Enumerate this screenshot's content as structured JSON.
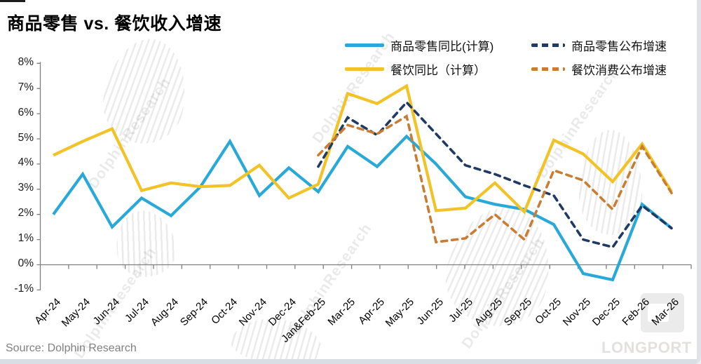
{
  "title": "商品零售 vs. 餐饮收入增速",
  "source": "Source: Dolphin Research",
  "watermark": {
    "text": "DolphinResearch",
    "logo_text": "LONGPORT"
  },
  "legend": [
    {
      "label": "商品零售同比(计算)",
      "color": "#29A9D8",
      "style": "solid"
    },
    {
      "label": "餐饮同比（计算）",
      "color": "#F2C327",
      "style": "solid"
    },
    {
      "label": "商品零售公布增速",
      "color": "#1F3A63",
      "style": "dashed"
    },
    {
      "label": "餐饮消费公布增速",
      "color": "#C97D33",
      "style": "dashed"
    }
  ],
  "chart_data": {
    "type": "line",
    "title": "商品零售 vs. 餐饮收入增速",
    "xlabel": "",
    "ylabel": "",
    "ylim": [
      -1,
      8
    ],
    "grid": false,
    "legend_position": "top",
    "y_ticks": [
      "8%",
      "7%",
      "6%",
      "5%",
      "4%",
      "3%",
      "2%",
      "1%",
      "0%",
      "-1%"
    ],
    "categories": [
      "Apr-24",
      "May-24",
      "Jun-24",
      "Jul-24",
      "Aug-24",
      "Sep-24",
      "Oct-24",
      "Nov-24",
      "Dec-24",
      "Jan&Feb-25",
      "Mar-25",
      "Apr-25",
      "May-25",
      "Jun-25",
      "Jul-25",
      "Aug-25",
      "Sep-25",
      "Oct-25",
      "Nov-25",
      "Dec-25",
      "Feb-26",
      "Mar-26"
    ],
    "series": [
      {
        "name": "商品零售同比(计算)",
        "color": "#29A9D8",
        "style": "solid",
        "values": [
          2.0,
          3.6,
          1.5,
          2.65,
          1.95,
          3.1,
          4.9,
          2.75,
          3.85,
          2.9,
          4.7,
          3.9,
          5.1,
          4.0,
          2.7,
          2.4,
          2.2,
          1.6,
          -0.35,
          -0.6,
          2.4,
          1.45
        ]
      },
      {
        "name": "餐饮同比（计算）",
        "color": "#F2C327",
        "style": "solid",
        "values": [
          4.35,
          4.9,
          5.4,
          2.95,
          3.25,
          3.1,
          3.15,
          3.95,
          2.65,
          3.2,
          6.8,
          6.4,
          7.1,
          2.15,
          2.25,
          3.25,
          2.1,
          4.95,
          4.4,
          3.3,
          4.8,
          2.9
        ]
      },
      {
        "name": "商品零售公布增速",
        "color": "#1F3A63",
        "style": "dashed",
        "values": [
          null,
          null,
          null,
          null,
          null,
          null,
          null,
          null,
          null,
          3.9,
          5.85,
          5.15,
          6.45,
          5.2,
          3.95,
          3.6,
          3.15,
          2.75,
          1.0,
          0.7,
          2.35,
          1.45
        ]
      },
      {
        "name": "餐饮消费公布增速",
        "color": "#C97D33",
        "style": "dashed",
        "values": [
          null,
          null,
          null,
          null,
          null,
          null,
          null,
          null,
          null,
          4.35,
          5.55,
          5.2,
          5.9,
          0.9,
          1.05,
          2.0,
          1.0,
          3.75,
          3.35,
          2.2,
          4.7,
          2.85
        ]
      }
    ]
  }
}
